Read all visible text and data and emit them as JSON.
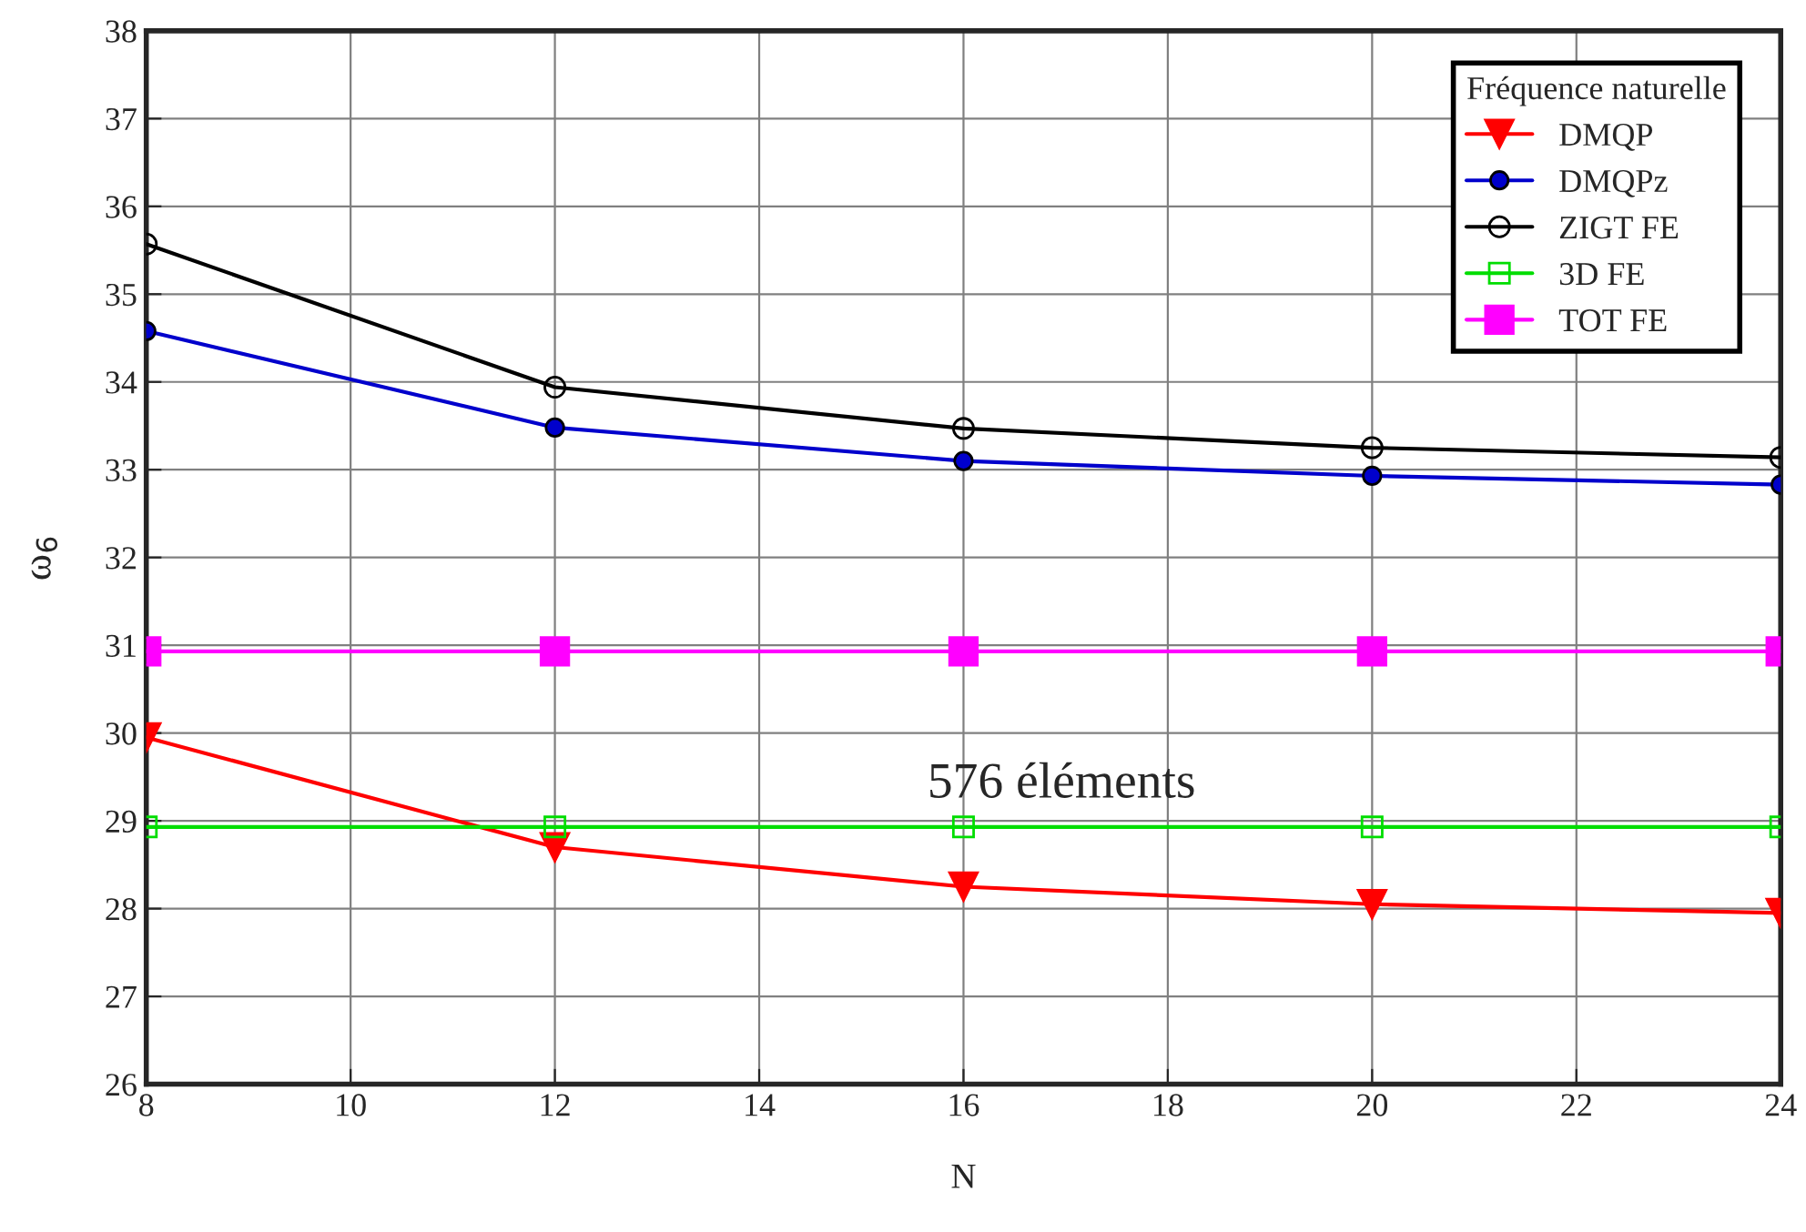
{
  "chart_data": {
    "type": "line",
    "xlabel": "N",
    "ylabel": "ω$_{6}$",
    "legend_title": "Fréquence naturelle",
    "x": [
      8,
      12,
      16,
      20,
      24
    ],
    "series": [
      {
        "name": "DMQP",
        "color": "#ff0000",
        "marker": "triangle",
        "values": [
          29.95,
          28.7,
          28.25,
          28.05,
          27.95
        ]
      },
      {
        "name": "DMQPz",
        "color": "#0000cc",
        "marker": "circle",
        "values": [
          34.58,
          33.48,
          33.1,
          32.93,
          32.83
        ]
      },
      {
        "name": "ZIGT FE",
        "color": "#000000",
        "marker": "circle",
        "values": [
          35.57,
          33.94,
          33.47,
          33.25,
          33.14
        ]
      },
      {
        "name": "3D FE",
        "color": "#00dd00",
        "marker": "square",
        "values": [
          28.93,
          28.93,
          28.93,
          28.93,
          28.93
        ]
      },
      {
        "name": "TOT FE",
        "color": "#ff00ff",
        "marker": "square",
        "values": [
          30.93,
          30.93,
          30.93,
          30.93,
          30.93
        ]
      }
    ],
    "annotations": [
      "576 éléments"
    ],
    "xlim": [
      8,
      24
    ],
    "xticks": [
      8,
      10,
      12,
      14,
      16,
      18,
      20,
      22,
      24
    ],
    "ylim": [
      26,
      38
    ],
    "yticks": [
      26,
      27,
      28,
      29,
      30,
      31,
      32,
      33,
      34,
      35,
      36,
      37,
      38
    ],
    "grid": true,
    "legend": "top right"
  }
}
